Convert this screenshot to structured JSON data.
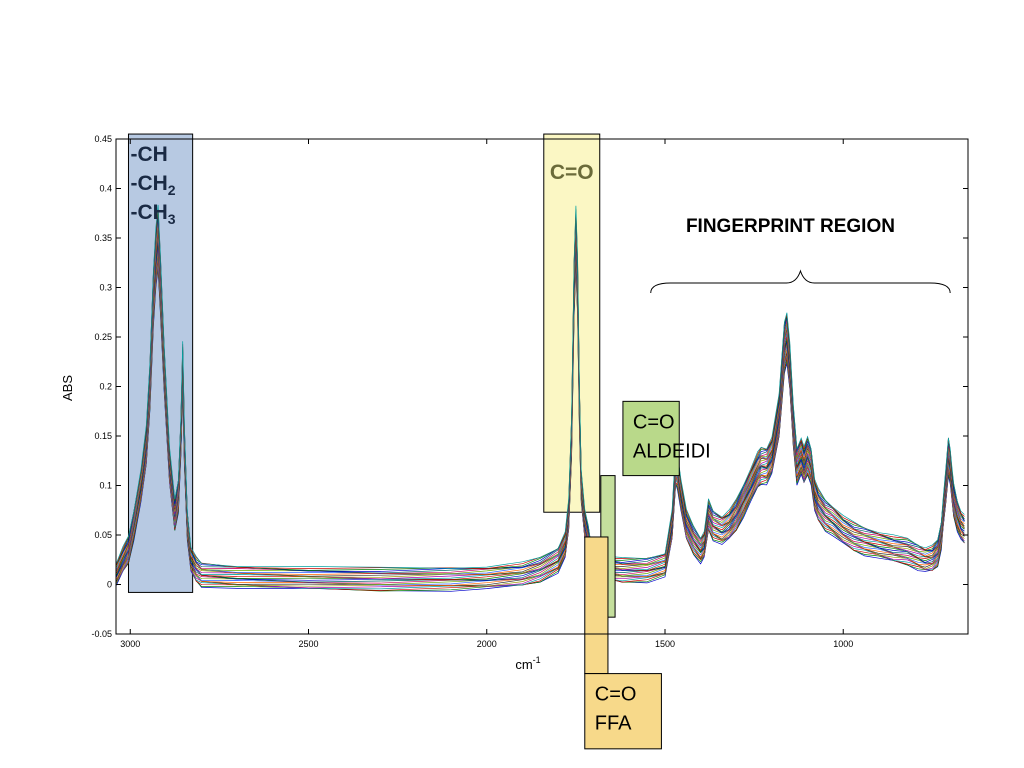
{
  "chart_data": {
    "type": "line",
    "xlabel": "cm",
    "xlabel_superscript": "-1",
    "ylabel": "ABS",
    "xlim": [
      3040,
      650
    ],
    "ylim": [
      -0.05,
      0.45
    ],
    "x_reversed": true,
    "xticks": [
      3000,
      2500,
      2000,
      1500,
      1000
    ],
    "xtick_labels": [
      "3000",
      "2500",
      "2000",
      "1500",
      "1000"
    ],
    "yticks": [
      -0.05,
      0,
      0.05,
      0.1,
      0.15,
      0.2,
      0.25,
      0.3,
      0.35,
      0.4,
      0.45
    ],
    "ytick_labels": [
      "-0.05",
      "0",
      "0.05",
      "0.1",
      "0.15",
      "0.2",
      "0.25",
      "0.3",
      "0.35",
      "0.4",
      "0.45"
    ],
    "grid": false,
    "series_colors": [
      "#0000cc",
      "#008000",
      "#cc0000",
      "#00a0a0",
      "#aa00aa",
      "#999900",
      "#333333",
      "#ff6600",
      "#3366ff",
      "#66aa00",
      "#cc0066",
      "#006666"
    ],
    "base_profile": {
      "x": [
        3040,
        3020,
        3005,
        2990,
        2970,
        2955,
        2945,
        2935,
        2928,
        2922,
        2915,
        2905,
        2890,
        2875,
        2865,
        2858,
        2853,
        2848,
        2840,
        2830,
        2815,
        2800,
        2700,
        2500,
        2300,
        2100,
        2000,
        1900,
        1850,
        1800,
        1780,
        1770,
        1762,
        1755,
        1750,
        1745,
        1740,
        1735,
        1725,
        1715,
        1710,
        1705,
        1700,
        1690,
        1680,
        1660,
        1620,
        1550,
        1500,
        1480,
        1470,
        1465,
        1455,
        1440,
        1420,
        1400,
        1390,
        1378,
        1365,
        1340,
        1320,
        1300,
        1280,
        1260,
        1240,
        1230,
        1215,
        1200,
        1180,
        1165,
        1158,
        1150,
        1140,
        1130,
        1118,
        1110,
        1100,
        1090,
        1080,
        1070,
        1050,
        1030,
        1000,
        970,
        940,
        900,
        860,
        820,
        790,
        770,
        750,
        735,
        725,
        720,
        712,
        705,
        700,
        695,
        690,
        680,
        670,
        660
      ],
      "y": [
        0.01,
        0.025,
        0.035,
        0.06,
        0.1,
        0.14,
        0.2,
        0.29,
        0.33,
        0.35,
        0.3,
        0.22,
        0.12,
        0.07,
        0.09,
        0.15,
        0.22,
        0.14,
        0.06,
        0.025,
        0.015,
        0.01,
        0.008,
        0.006,
        0.005,
        0.006,
        0.007,
        0.01,
        0.015,
        0.025,
        0.04,
        0.07,
        0.15,
        0.3,
        0.35,
        0.3,
        0.18,
        0.1,
        0.06,
        0.045,
        0.035,
        0.03,
        0.025,
        0.02,
        0.018,
        0.016,
        0.014,
        0.015,
        0.02,
        0.06,
        0.12,
        0.115,
        0.09,
        0.06,
        0.045,
        0.035,
        0.04,
        0.07,
        0.06,
        0.055,
        0.06,
        0.07,
        0.085,
        0.1,
        0.115,
        0.12,
        0.12,
        0.13,
        0.17,
        0.24,
        0.25,
        0.22,
        0.16,
        0.12,
        0.13,
        0.12,
        0.13,
        0.12,
        0.09,
        0.08,
        0.07,
        0.065,
        0.055,
        0.048,
        0.044,
        0.04,
        0.036,
        0.033,
        0.028,
        0.025,
        0.026,
        0.032,
        0.05,
        0.07,
        0.1,
        0.13,
        0.12,
        0.1,
        0.085,
        0.07,
        0.06,
        0.055
      ],
      "series_count": 28
    },
    "annotations": [
      {
        "kind": "band",
        "name": "ch-band",
        "x_from": 3005,
        "x_to": 2825,
        "y_from": 0.455,
        "y_to": -0.008,
        "fill": "#b7c9e2",
        "label_lines": [
          "-CH",
          "-CH",
          "-CH"
        ],
        "label_subscripts": [
          "",
          "2",
          "3"
        ]
      },
      {
        "kind": "band",
        "name": "co-band",
        "x_from": 1840,
        "x_to": 1683,
        "y_from": 0.455,
        "y_to": 0.073,
        "fill": "#fbf7c4",
        "label_lines": [
          "C=O"
        ]
      },
      {
        "kind": "band",
        "name": "co-aldeidi-band",
        "x_from": 1618,
        "x_to": 1460,
        "y_from": 0.185,
        "y_to": 0.11,
        "fill": "#b9d98a",
        "label_lines": [
          "C=O",
          "ALDEIDI"
        ]
      },
      {
        "kind": "band",
        "name": "co-aldeidi-stem",
        "x_from": 1680,
        "x_to": 1640,
        "y_from": 0.11,
        "y_to": -0.033,
        "fill": "#c5df9d"
      },
      {
        "kind": "band",
        "name": "co-ffa-stem",
        "x_from": 1725,
        "x_to": 1660,
        "y_from": 0.048,
        "y_to": -0.09,
        "fill": "#f7d98a"
      },
      {
        "kind": "band",
        "name": "co-ffa-band",
        "x_from": 1725,
        "x_to": 1510,
        "y_from": -0.09,
        "y_to": -0.166,
        "fill": "#f7d98a",
        "label_lines": [
          "C=O",
          "FFA"
        ]
      },
      {
        "kind": "brace",
        "name": "fingerprint-brace",
        "x_from": 1540,
        "x_to": 700,
        "label": "FINGERPRINT REGION"
      }
    ]
  }
}
